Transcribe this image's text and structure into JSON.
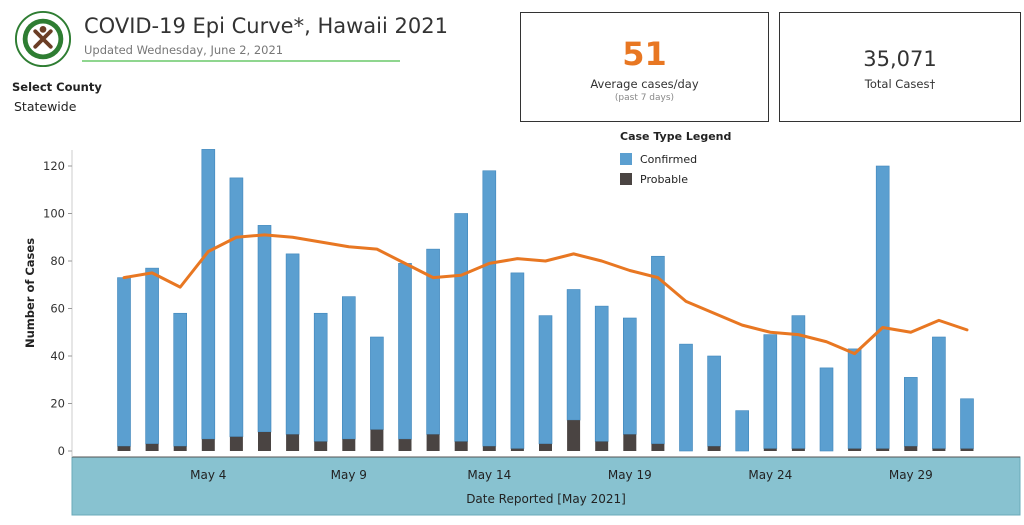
{
  "header": {
    "title": "COVID-19 Epi Curve*, Hawaii 2021",
    "updated": "Updated Wednesday, June 2, 2021",
    "county_label": "Select County",
    "county_value": "Statewide"
  },
  "kpis": [
    {
      "value": "51",
      "label": "Average cases/day",
      "sub": "(past 7 days)"
    },
    {
      "value": "35,071",
      "label": "Total Cases†"
    }
  ],
  "legend": {
    "title": "Case Type Legend",
    "items": [
      {
        "label": "Confirmed",
        "color": "#5b9fd0"
      },
      {
        "label": "Probable",
        "color": "#4a4442"
      }
    ]
  },
  "colors": {
    "confirmed": "#5b9fd0",
    "probable": "#4a4442",
    "average_line": "#e87722",
    "axis_band": "#88c2d0"
  },
  "chart_data": {
    "type": "bar",
    "xlabel": "Date Reported [May 2021]",
    "ylabel": "Number of Cases",
    "ylim": [
      0,
      130
    ],
    "yticks": [
      0,
      20,
      40,
      60,
      80,
      100,
      120
    ],
    "x_tick_labels": [
      {
        "day": 4,
        "label": "May 4"
      },
      {
        "day": 9,
        "label": "May 9"
      },
      {
        "day": 14,
        "label": "May 14"
      },
      {
        "day": 19,
        "label": "May 19"
      },
      {
        "day": 24,
        "label": "May 24"
      },
      {
        "day": 29,
        "label": "May 29"
      }
    ],
    "days": [
      1,
      2,
      3,
      4,
      5,
      6,
      7,
      8,
      9,
      10,
      11,
      12,
      13,
      14,
      15,
      16,
      17,
      18,
      19,
      20,
      21,
      22,
      23,
      24,
      25,
      26,
      27,
      28,
      29,
      30,
      31
    ],
    "series": [
      {
        "name": "Confirmed",
        "values": [
          71,
          74,
          56,
          122,
          109,
          87,
          76,
          54,
          60,
          39,
          74,
          78,
          96,
          116,
          74,
          54,
          55,
          57,
          49,
          79,
          45,
          38,
          17,
          48,
          56,
          35,
          42,
          119,
          29,
          47,
          21
        ]
      },
      {
        "name": "Probable",
        "values": [
          2,
          3,
          2,
          5,
          6,
          8,
          7,
          4,
          5,
          9,
          5,
          7,
          4,
          2,
          1,
          3,
          13,
          4,
          7,
          3,
          0,
          2,
          0,
          1,
          1,
          0,
          1,
          1,
          2,
          1,
          1
        ]
      }
    ],
    "average_line": [
      73,
      75,
      69,
      84,
      90,
      91,
      90,
      88,
      86,
      85,
      79,
      73,
      74,
      79,
      81,
      80,
      83,
      80,
      76,
      73,
      63,
      58,
      53,
      50,
      49,
      46,
      41,
      52,
      50,
      55,
      51
    ]
  }
}
